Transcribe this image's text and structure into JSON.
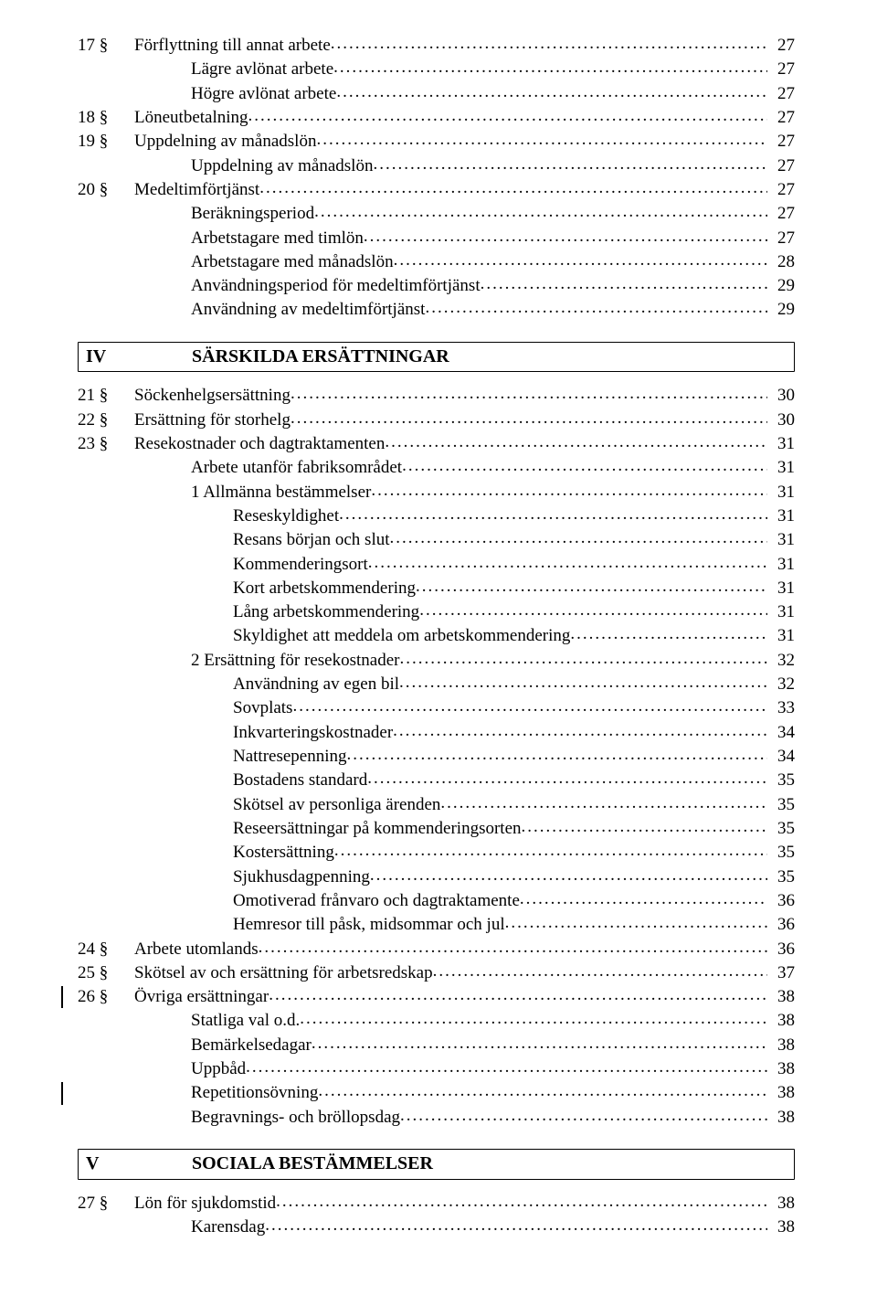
{
  "fontFamily": "Times New Roman",
  "textColor": "#000000",
  "backgroundColor": "#ffffff",
  "baseFontSizePt": 14,
  "pageWidthPx": 960,
  "pageHeightPx": 1373,
  "sections": [
    {
      "id": "cont",
      "entries": [
        {
          "sec": "17 §",
          "level": 0,
          "text": "Förflyttning till annat arbete",
          "page": "27"
        },
        {
          "level": 2,
          "text": "Lägre avlönat arbete",
          "page": "27"
        },
        {
          "level": 2,
          "text": "Högre avlönat arbete",
          "page": "27"
        },
        {
          "sec": "18 §",
          "level": 0,
          "text": "Löneutbetalning",
          "page": "27"
        },
        {
          "sec": "19 §",
          "level": 0,
          "text": "Uppdelning av månadslön",
          "page": "27"
        },
        {
          "level": 2,
          "text": "Uppdelning av månadslön",
          "page": "27"
        },
        {
          "sec": "20 §",
          "level": 0,
          "text": "Medeltimförtjänst",
          "page": "27"
        },
        {
          "level": 2,
          "text": "Beräkningsperiod",
          "page": "27"
        },
        {
          "level": 2,
          "text": "Arbetstagare med timlön",
          "page": "27"
        },
        {
          "level": 2,
          "text": "Arbetstagare med månadslön",
          "page": "28"
        },
        {
          "level": 2,
          "text": "Användningsperiod för medeltimförtjänst",
          "page": "29"
        },
        {
          "level": 2,
          "text": "Användning av medeltimförtjänst",
          "page": "29"
        }
      ]
    },
    {
      "id": "iv",
      "heading": {
        "roman": "IV",
        "title": "SÄRSKILDA ERSÄTTNINGAR"
      },
      "entries": [
        {
          "sec": "21 §",
          "level": 0,
          "text": "Söckenhelgsersättning",
          "page": "30"
        },
        {
          "sec": "22 §",
          "level": 0,
          "text": "Ersättning för storhelg",
          "page": "30"
        },
        {
          "sec": "23 §",
          "level": 0,
          "text": "Resekostnader och dagtraktamenten",
          "page": "31"
        },
        {
          "level": 2,
          "text": "Arbete utanför fabriksområdet",
          "page": "31"
        },
        {
          "level": 2,
          "text": "1 Allmänna bestämmelser",
          "page": "31"
        },
        {
          "level": 3,
          "text": "Reseskyldighet",
          "page": "31"
        },
        {
          "level": 3,
          "text": "Resans början och slut",
          "page": "31"
        },
        {
          "level": 3,
          "text": "Kommenderingsort",
          "page": "31"
        },
        {
          "level": 3,
          "text": "Kort arbetskommendering",
          "page": "31"
        },
        {
          "level": 3,
          "text": "Lång arbetskommendering",
          "page": "31"
        },
        {
          "level": 3,
          "text": "Skyldighet att meddela om arbetskommendering",
          "page": "31"
        },
        {
          "level": 2,
          "text": "2 Ersättning för resekostnader",
          "page": "32"
        },
        {
          "level": 3,
          "text": "Användning av egen bil",
          "page": "32"
        },
        {
          "level": 3,
          "text": "Sovplats",
          "page": "33"
        },
        {
          "level": 3,
          "text": "Inkvarteringskostnader",
          "page": "34"
        },
        {
          "level": 3,
          "text": "Nattresepenning",
          "page": "34"
        },
        {
          "level": 3,
          "text": "Bostadens standard",
          "page": "35"
        },
        {
          "level": 3,
          "text": "Skötsel av personliga ärenden",
          "page": "35"
        },
        {
          "level": 3,
          "text": "Reseersättningar på kommenderingsorten",
          "page": "35"
        },
        {
          "level": 3,
          "text": "Kostersättning",
          "page": "35"
        },
        {
          "level": 3,
          "text": "Sjukhusdagpenning",
          "page": "35"
        },
        {
          "level": 3,
          "text": "Omotiverad frånvaro och dagtraktamente",
          "page": "36"
        },
        {
          "level": 3,
          "text": "Hemresor till påsk, midsommar och jul",
          "page": "36"
        },
        {
          "sec": "24 §",
          "level": 0,
          "text": "Arbete utomlands",
          "page": "36"
        },
        {
          "sec": "25 §",
          "level": 0,
          "text": "Skötsel av och ersättning för arbetsredskap",
          "page": "37"
        },
        {
          "sec": "26 §",
          "level": 0,
          "text": "Övriga ersättningar",
          "page": "38",
          "revbar": true
        },
        {
          "level": 2,
          "text": "Statliga val o.d.",
          "page": "38"
        },
        {
          "level": 2,
          "text": "Bemärkelsedagar",
          "page": "38"
        },
        {
          "level": 2,
          "text": "Uppbåd",
          "page": "38"
        },
        {
          "level": 2,
          "text": "Repetitionsövning",
          "page": "38",
          "revbar": true
        },
        {
          "level": 2,
          "text": "Begravnings- och bröllopsdag",
          "page": "38"
        }
      ]
    },
    {
      "id": "v",
      "heading": {
        "roman": "V",
        "title": "SOCIALA BESTÄMMELSER"
      },
      "entries": [
        {
          "sec": "27 §",
          "level": 0,
          "text": "Lön för sjukdomstid",
          "page": "38"
        },
        {
          "level": 2,
          "text": "Karensdag",
          "page": "38"
        }
      ]
    }
  ]
}
